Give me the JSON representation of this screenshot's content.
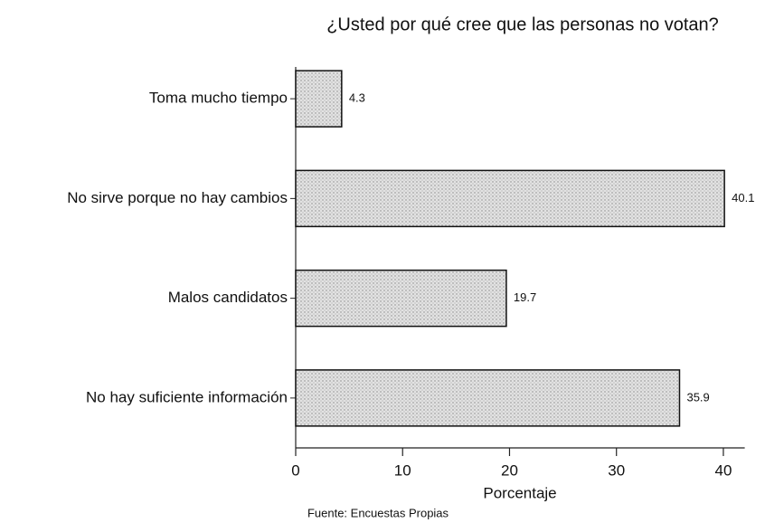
{
  "chart_data": {
    "type": "barh",
    "title": "¿Usted por qué cree que las personas no votan?",
    "categories": [
      "Toma mucho tiempo",
      "No sirve porque no hay cambios",
      "Malos candidatos",
      "No hay suficiente información"
    ],
    "values": [
      4.3,
      40.1,
      19.7,
      35.9
    ],
    "color": "#d6d6d6",
    "xlabel": "Porcentaje",
    "xlim": [
      0,
      42
    ],
    "xticks": [
      0,
      10,
      20,
      30,
      40
    ],
    "source": "Fuente: Encuestas Propias"
  }
}
